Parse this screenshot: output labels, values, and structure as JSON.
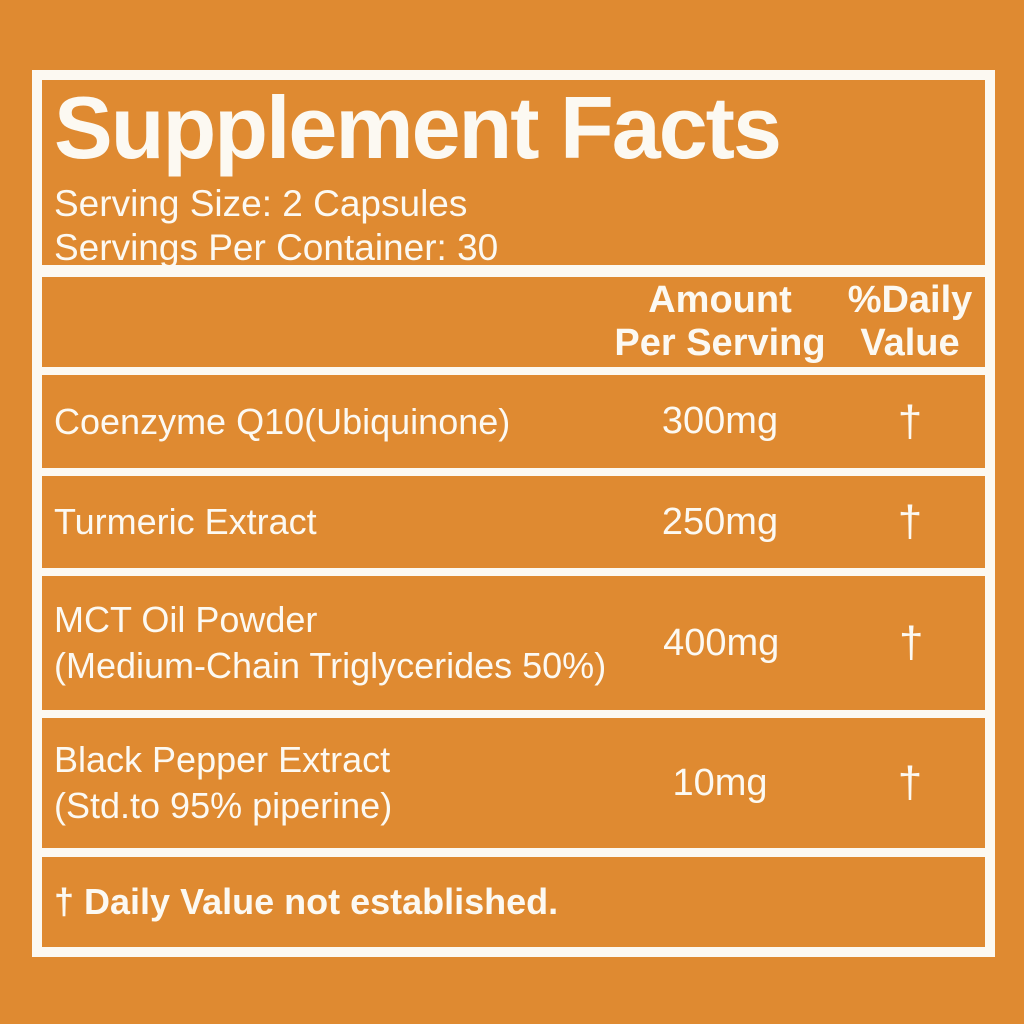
{
  "label": {
    "title": "Supplement Facts",
    "serving_size": "Serving Size: 2 Capsules",
    "servings_per_container": "Servings Per Container: 30",
    "header": {
      "amount_line1": "Amount",
      "amount_line2": "Per Serving",
      "dv_line1": "%Daily",
      "dv_line2": "Value"
    },
    "rows": [
      {
        "name": "Coenzyme Q10(Ubiquinone)",
        "amount": "300mg",
        "dv": "†"
      },
      {
        "name": "Turmeric Extract",
        "amount": "250mg",
        "dv": "†"
      },
      {
        "name": "MCT Oil Powder",
        "name2": "(Medium-Chain Triglycerides 50%)",
        "amount": "400mg",
        "dv": "†"
      },
      {
        "name": "Black Pepper Extract",
        "name2": "(Std.to 95% piperine)",
        "amount": "10mg",
        "dv": "†"
      }
    ],
    "footnote": "† Daily Value not established.",
    "colors": {
      "background": "#DF8A31",
      "foreground": "#FCF9F2"
    }
  }
}
